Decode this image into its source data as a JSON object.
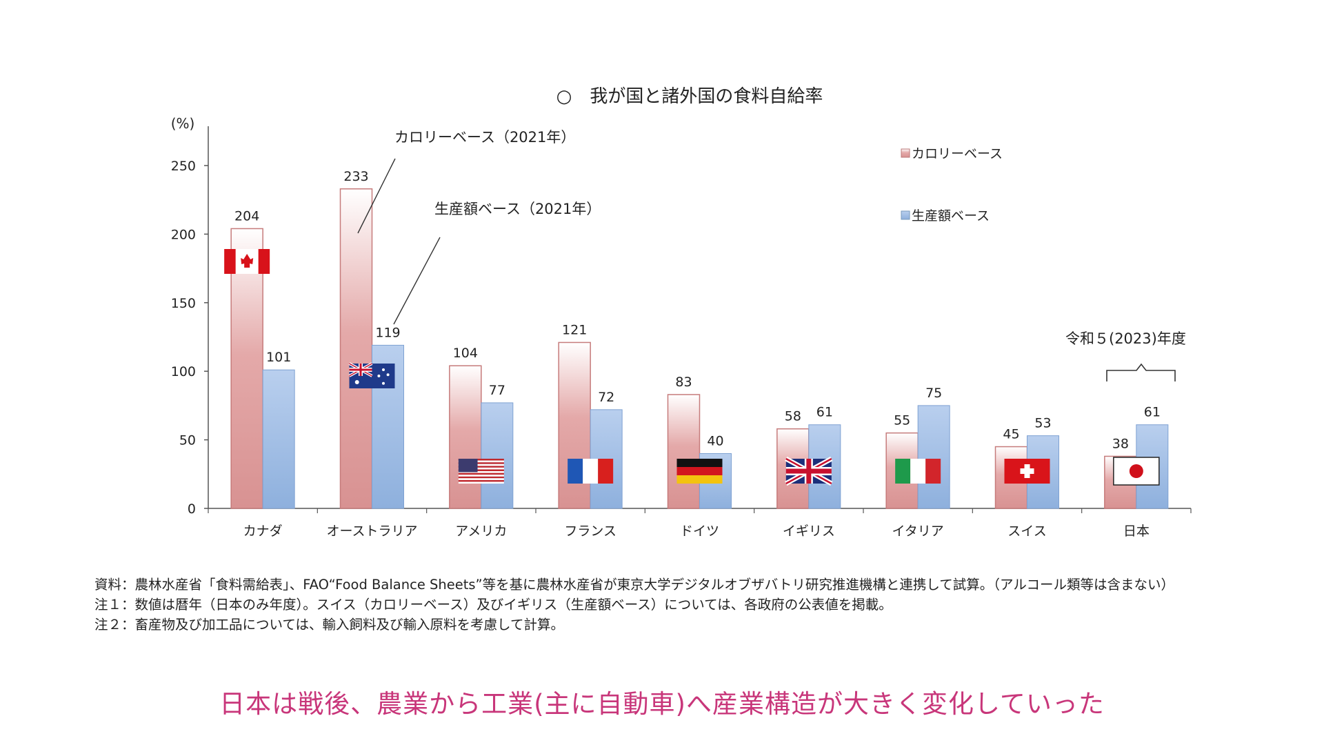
{
  "chart_data": {
    "type": "bar",
    "title": "○　我が国と諸外国の食料自給率",
    "ylabel": "(%)",
    "ylim": [
      0,
      280
    ],
    "yticks": [
      0,
      50,
      100,
      150,
      200,
      250
    ],
    "categories": [
      "カナダ",
      "オーストラリア",
      "アメリカ",
      "フランス",
      "ドイツ",
      "イギリス",
      "イタリア",
      "スイス",
      "日本"
    ],
    "series": [
      {
        "name": "カロリーベース",
        "values": [
          204,
          233,
          104,
          121,
          83,
          58,
          55,
          45,
          38
        ],
        "color": "#d89a9a"
      },
      {
        "name": "生産額ベース",
        "values": [
          101,
          119,
          77,
          72,
          40,
          61,
          75,
          53,
          61
        ],
        "color": "#9ab7e0"
      }
    ],
    "flags": [
      "canada-flag",
      "australia-flag",
      "usa-flag",
      "france-flag",
      "germany-flag",
      "uk-flag",
      "italy-flag",
      "switzerland-flag",
      "japan-flag"
    ],
    "legend": [
      "カロリーベース",
      "生産額ベース"
    ],
    "legend_position": "top-right",
    "annotations": {
      "calorie": "カロリーベース（2021年）",
      "production": "生産額ベース（2021年）",
      "japan": "令和５(2023)年度"
    },
    "grid": false
  },
  "notes": [
    "資料：農林水産省「食料需給表」、FAO“Food Balance Sheets”等を基に農林水産省が東京大学デジタルオブザバトリ研究推進機構と連携して試算。（アルコール類等は含まない）",
    "注１：数値は暦年（日本のみ年度）。スイス（カロリーベース）及びイギリス（生産額ベース）については、各政府の公表値を掲載。",
    "注２：畜産物及び加工品については、輸入飼料及び輸入原料を考慮して計算。"
  ],
  "caption": "日本は戦後、農業から工業(主に自動車)へ産業構造が大きく変化していった",
  "colors": {
    "calorie": "#d89a9a",
    "production": "#9ab7e0",
    "caption": "#c8367a"
  }
}
